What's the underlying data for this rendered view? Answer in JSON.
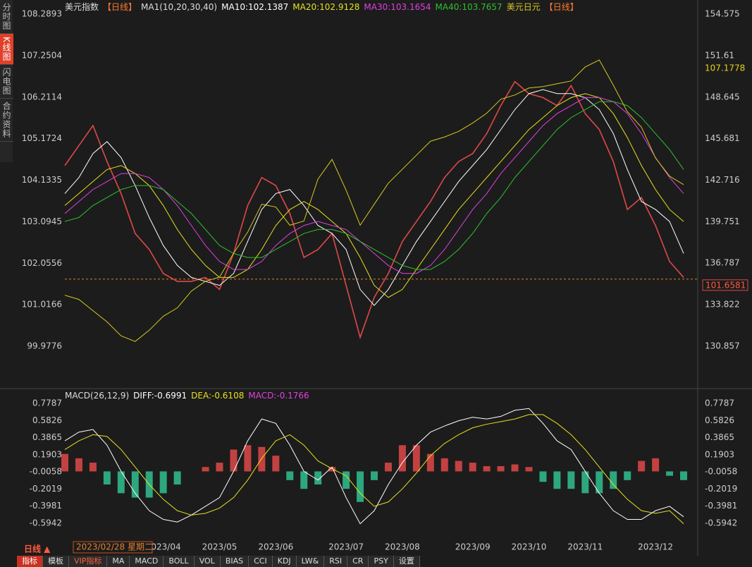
{
  "sidebar_tabs": [
    "分时图",
    "K线图",
    "闪电图",
    "合约资料"
  ],
  "chart_data": [
    {
      "type": "line",
      "title": "美元指数",
      "period": "【日线】",
      "indicator": "MA1(10,20,30,40)",
      "overlay_title": "美元日元",
      "overlay_period": "【日线】",
      "categories": [
        null,
        null,
        null,
        null,
        null,
        null,
        null,
        "2023/04",
        null,
        null,
        null,
        "2023/05",
        null,
        null,
        null,
        "2023/06",
        null,
        null,
        null,
        null,
        "2023/07",
        null,
        null,
        null,
        "2023/08",
        null,
        null,
        null,
        null,
        "2023/09",
        null,
        null,
        null,
        "2023/10",
        null,
        null,
        null,
        "2023/11",
        null,
        null,
        null,
        null,
        "2023/12",
        null,
        null
      ],
      "series": [
        {
          "name": "美元指数",
          "color": "#e04848",
          "values": [
            104.5,
            105.0,
            105.5,
            104.6,
            103.8,
            102.8,
            102.4,
            101.8,
            101.6,
            101.6,
            101.7,
            101.4,
            102.3,
            103.5,
            104.2,
            104.0,
            103.3,
            102.2,
            102.4,
            102.8,
            101.5,
            100.2,
            101.2,
            101.8,
            102.6,
            103.1,
            103.6,
            104.2,
            104.6,
            104.8,
            105.3,
            106.0,
            106.6,
            106.3,
            106.2,
            106.0,
            106.5,
            105.8,
            105.4,
            104.6,
            103.4,
            103.7,
            103.0,
            102.1,
            101.7
          ]
        },
        {
          "name": "MA10:102.1387",
          "color": "#ffffff",
          "values": [
            103.8,
            104.2,
            104.8,
            105.1,
            104.7,
            104.0,
            103.2,
            102.5,
            102.0,
            101.7,
            101.6,
            101.5,
            101.8,
            102.6,
            103.4,
            103.8,
            103.9,
            103.5,
            103.0,
            102.8,
            102.4,
            101.4,
            101.0,
            101.4,
            102.0,
            102.6,
            103.1,
            103.6,
            104.1,
            104.5,
            104.9,
            105.4,
            105.9,
            106.3,
            106.4,
            106.3,
            106.3,
            106.2,
            105.9,
            105.3,
            104.4,
            103.6,
            103.4,
            103.1,
            102.3
          ]
        },
        {
          "name": "MA20:102.9128",
          "color": "#e6e020",
          "values": [
            103.5,
            103.8,
            104.1,
            104.4,
            104.5,
            104.3,
            104.0,
            103.5,
            102.9,
            102.4,
            102.0,
            101.7,
            101.7,
            101.9,
            102.4,
            103.0,
            103.4,
            103.6,
            103.4,
            103.1,
            102.8,
            102.2,
            101.5,
            101.2,
            101.4,
            101.9,
            102.4,
            102.9,
            103.4,
            103.8,
            104.2,
            104.6,
            105.0,
            105.4,
            105.7,
            106.0,
            106.2,
            106.3,
            106.2,
            105.8,
            105.2,
            104.5,
            103.9,
            103.4,
            103.1
          ]
        },
        {
          "name": "MA30:103.1654",
          "color": "#e040e0",
          "values": [
            103.3,
            103.6,
            103.9,
            104.1,
            104.3,
            104.3,
            104.2,
            103.9,
            103.5,
            103.0,
            102.5,
            102.1,
            101.9,
            101.9,
            102.1,
            102.5,
            102.8,
            103.0,
            103.1,
            103.0,
            102.9,
            102.6,
            102.3,
            102.0,
            101.8,
            101.8,
            102.0,
            102.4,
            102.9,
            103.4,
            103.8,
            104.3,
            104.7,
            105.1,
            105.5,
            105.8,
            106.0,
            106.2,
            106.2,
            106.1,
            105.8,
            105.3,
            104.7,
            104.2,
            103.8
          ]
        },
        {
          "name": "MA40:103.7657",
          "color": "#30c030",
          "values": [
            103.1,
            103.2,
            103.5,
            103.7,
            103.9,
            104.0,
            104.0,
            103.9,
            103.6,
            103.3,
            102.9,
            102.5,
            102.3,
            102.2,
            102.2,
            102.4,
            102.6,
            102.8,
            102.9,
            102.9,
            102.8,
            102.6,
            102.4,
            102.2,
            102.0,
            101.9,
            101.9,
            102.1,
            102.4,
            102.8,
            103.3,
            103.7,
            104.2,
            104.6,
            105.0,
            105.4,
            105.7,
            105.9,
            106.1,
            106.1,
            106.0,
            105.7,
            105.3,
            104.9,
            104.4
          ]
        },
        {
          "name": "美元日元",
          "color": "#d8c820",
          "axis": "y2",
          "values": [
            134.5,
            134.2,
            133.4,
            132.6,
            131.6,
            131.2,
            132.0,
            133.0,
            133.6,
            134.8,
            135.5,
            135.8,
            137.5,
            139.0,
            141.0,
            140.8,
            139.5,
            139.8,
            142.8,
            144.2,
            142.0,
            139.5,
            141.0,
            142.5,
            143.5,
            144.5,
            145.5,
            145.8,
            146.2,
            146.8,
            147.5,
            148.5,
            148.8,
            149.3,
            149.4,
            149.6,
            149.8,
            150.8,
            151.3,
            149.5,
            147.6,
            146.5,
            144.3,
            143.0,
            142.4
          ]
        }
      ],
      "ylim": [
        99.025,
        108.501
      ],
      "yticks": [
        108.2893,
        107.2504,
        106.2114,
        105.1724,
        104.1335,
        103.0945,
        102.0556,
        101.0166,
        99.9776
      ],
      "y2lim": [
        128.138,
        155.179
      ],
      "y2ticks": [
        154.575,
        151.61,
        148.645,
        145.681,
        142.716,
        139.751,
        136.787,
        133.822,
        130.857
      ],
      "last_price": 101.6581,
      "marker_price": 107.1778
    },
    {
      "type": "macd",
      "title": "MACD(26,12,9)",
      "series": [
        {
          "name": "DIFF:-0.6991",
          "color": "#ffffff",
          "values": [
            0.35,
            0.45,
            0.48,
            0.3,
            0.0,
            -0.25,
            -0.45,
            -0.55,
            -0.58,
            -0.5,
            -0.4,
            -0.3,
            0.0,
            0.35,
            0.6,
            0.55,
            0.3,
            0.0,
            -0.1,
            0.05,
            -0.3,
            -0.6,
            -0.45,
            -0.15,
            0.1,
            0.3,
            0.45,
            0.52,
            0.58,
            0.62,
            0.6,
            0.63,
            0.7,
            0.72,
            0.55,
            0.35,
            0.25,
            0.0,
            -0.25,
            -0.45,
            -0.55,
            -0.55,
            -0.45,
            -0.4,
            -0.52
          ]
        },
        {
          "name": "DEA:-0.6108",
          "color": "#e6e020",
          "values": [
            0.25,
            0.35,
            0.42,
            0.4,
            0.25,
            0.05,
            -0.15,
            -0.32,
            -0.45,
            -0.5,
            -0.48,
            -0.42,
            -0.3,
            -0.1,
            0.15,
            0.35,
            0.42,
            0.3,
            0.12,
            0.03,
            -0.05,
            -0.25,
            -0.4,
            -0.35,
            -0.2,
            -0.02,
            0.18,
            0.32,
            0.42,
            0.5,
            0.54,
            0.57,
            0.6,
            0.65,
            0.65,
            0.55,
            0.42,
            0.25,
            0.05,
            -0.15,
            -0.32,
            -0.45,
            -0.48,
            -0.45,
            -0.6
          ]
        },
        {
          "name": "MACD:-0.1766",
          "color": "#e040e0",
          "pos_color": "#e04848",
          "neg_color": "#30c090",
          "values": [
            0.2,
            0.15,
            0.1,
            -0.15,
            -0.25,
            -0.3,
            -0.3,
            -0.25,
            -0.15,
            0.0,
            0.05,
            0.1,
            0.25,
            0.3,
            0.28,
            0.18,
            -0.1,
            -0.2,
            -0.15,
            0.05,
            -0.2,
            -0.35,
            -0.1,
            0.1,
            0.3,
            0.3,
            0.2,
            0.15,
            0.12,
            0.1,
            0.06,
            0.06,
            0.08,
            0.05,
            -0.12,
            -0.2,
            -0.2,
            -0.25,
            -0.25,
            -0.2,
            -0.1,
            0.12,
            0.15,
            -0.05,
            -0.1
          ]
        }
      ],
      "ylim": [
        -0.7396,
        0.8352
      ],
      "yticks": [
        0.7787,
        0.5826,
        0.3865,
        0.1903,
        -0.0058,
        -0.2019,
        -0.3981,
        -0.5942
      ]
    }
  ],
  "footer": {
    "period": "日线 ▲",
    "cursor_date": "2023/02/28 星期二",
    "tabs": [
      "指标",
      "模板",
      "VIP指标",
      "MA",
      "MACD",
      "BOLL",
      "VOL",
      "BIAS",
      "CCI",
      "KDJ",
      "LW&",
      "RSI",
      "CR",
      "PSY",
      "设置"
    ]
  }
}
